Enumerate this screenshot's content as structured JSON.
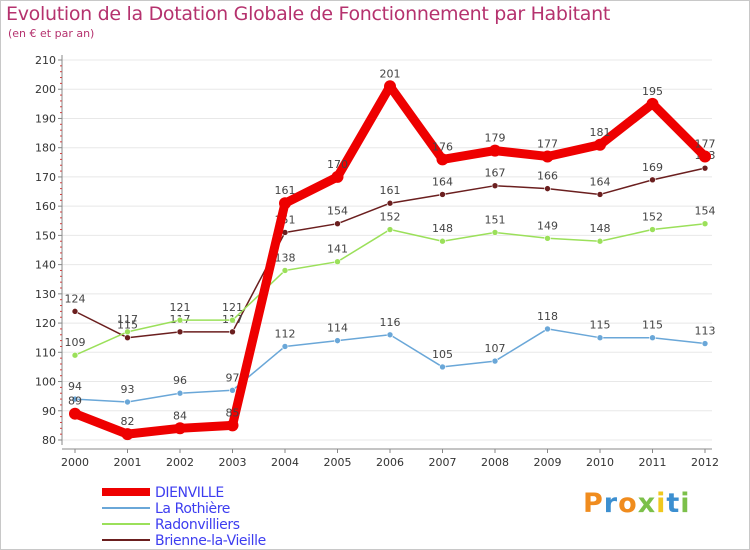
{
  "title": "Evolution de la Dotation Globale de Fonctionnement par Habitant",
  "subtitle": "(en € et par an)",
  "logo": {
    "letters": [
      "P",
      "r",
      "o",
      "x",
      "i",
      "t",
      "i"
    ],
    "colors": [
      "#f08c1e",
      "#3c8fd0",
      "#f08c1e",
      "#7cc04a",
      "#f0c81e",
      "#3c8fd0",
      "#7cc04a"
    ]
  },
  "colors": {
    "title": "#b5326e",
    "legend_text": "#3d3df0",
    "axis": "#888888",
    "tick_text": "#333333",
    "grid": "#e8e8e8"
  },
  "chart_data": {
    "type": "line",
    "title": "Evolution de la Dotation Globale de Fonctionnement par Habitant",
    "subtitle": "(en € et par an)",
    "xlabel": "",
    "ylabel": "",
    "categories": [
      "2000",
      "2001",
      "2002",
      "2003",
      "2004",
      "2005",
      "2006",
      "2007",
      "2008",
      "2009",
      "2010",
      "2011",
      "2012"
    ],
    "ylim": [
      80,
      210
    ],
    "yticks": [
      80,
      90,
      100,
      110,
      120,
      130,
      140,
      150,
      160,
      170,
      180,
      190,
      200,
      210
    ],
    "grid": true,
    "legend_position": "bottom-left",
    "series": [
      {
        "name": "Brienne-la-Vieille",
        "color": "#6b1f1f",
        "values": [
          124,
          115,
          117,
          117,
          151,
          154,
          161,
          164,
          167,
          166,
          164,
          169,
          173
        ],
        "labels": [
          "124",
          "115",
          "117",
          "117",
          "151",
          "154",
          "161",
          "164",
          "167",
          "166",
          "164",
          "169",
          "173"
        ]
      },
      {
        "name": "Radonvilliers",
        "color": "#9be05a",
        "values": [
          109,
          117,
          121,
          121,
          138,
          141,
          152,
          148,
          151,
          149,
          148,
          152,
          154
        ],
        "labels": [
          "109",
          "117",
          "121",
          "121",
          "138",
          "141",
          "152",
          "148",
          "151",
          "149",
          "148",
          "152",
          "154"
        ]
      },
      {
        "name": "La Rothière",
        "color": "#6aa7d8",
        "values": [
          94,
          93,
          96,
          97,
          112,
          114,
          116,
          105,
          107,
          118,
          115,
          115,
          113
        ],
        "labels": [
          "94",
          "93",
          "96",
          "97",
          "112",
          "114",
          "116",
          "105",
          "107",
          "118",
          "115",
          "115",
          "113"
        ]
      },
      {
        "name": "DIENVILLE",
        "color": "#ee0000",
        "values": [
          89,
          82,
          84,
          85,
          161,
          170,
          201,
          176,
          179,
          177,
          181,
          195,
          177
        ],
        "labels": [
          "89",
          "82",
          "84",
          "85",
          "161",
          "170",
          "201",
          "176",
          "179",
          "177",
          "181",
          "195",
          "177"
        ]
      }
    ],
    "legend_order": [
      "DIENVILLE",
      "La Rothière",
      "Radonvilliers",
      "Brienne-la-Vieille"
    ]
  }
}
